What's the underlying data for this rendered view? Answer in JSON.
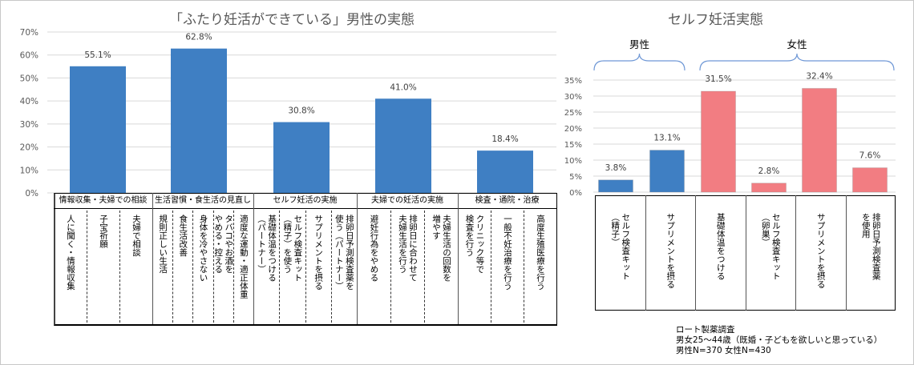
{
  "chart_data": [
    {
      "type": "bar",
      "title": "「ふたり妊活ができている」男性の実態",
      "xlabel": "",
      "ylabel": "",
      "ylim": [
        0,
        70
      ],
      "yticks": [
        "0%",
        "10%",
        "20%",
        "30%",
        "40%",
        "50%",
        "60%",
        "70%"
      ],
      "grid": true,
      "bar_color": "#3f7fc3",
      "categories": [
        "情報収集・夫婦での相談",
        "生活習慣・食生活の見直し",
        "セルフ妊活の実施",
        "夫婦での妊活の実施",
        "検査・通院・治療"
      ],
      "values": [
        55.1,
        62.8,
        30.8,
        41.0,
        18.4
      ],
      "data_labels": [
        "55.1%",
        "62.8%",
        "30.8%",
        "41.0%",
        "18.4%"
      ],
      "category_groups": [
        {
          "header": "情報収集・夫婦での相談",
          "items": [
            "人に聞く・情報収集",
            "子宝祈願",
            "夫婦で相談"
          ]
        },
        {
          "header": "生活習慣・食生活の見直し",
          "items": [
            "規則正しい生活",
            "食生活改善",
            "身体を冷やさない",
            "タバコやお酒を\nやめる・控える",
            "適度な運動・適正体重"
          ]
        },
        {
          "header": "セルフ妊活の実施",
          "items": [
            "基礎体温をつける\n（パートナー）",
            "セルフ検査キット\n（精子）を使う",
            "サプリメントを摂る",
            "排卵日予測検査薬を\n使う（パートナー）"
          ]
        },
        {
          "header": "夫婦での妊活の実施",
          "items": [
            "避妊行為をやめる",
            "排卵日に合わせて\n夫婦生活を行う",
            "夫婦生活の回数を\n増やす"
          ]
        },
        {
          "header": "検査・通院・治療",
          "items": [
            "クリニック等で\n検査を行う",
            "一般不妊治療を行う",
            "高度生殖医療を行う"
          ]
        }
      ]
    },
    {
      "type": "bar",
      "title": "セルフ妊活実態",
      "xlabel": "",
      "ylabel": "",
      "ylim": [
        0,
        35
      ],
      "yticks": [
        "0%",
        "5%",
        "10%",
        "15%",
        "20%",
        "25%",
        "30%",
        "35%"
      ],
      "grid": true,
      "groups": [
        {
          "name": "男性",
          "color": "#3f7fc3"
        },
        {
          "name": "女性",
          "color": "#f27d82"
        }
      ],
      "categories": [
        "セルフ検査キット\n（精子）",
        "サプリメントを摂る",
        "基礎体温をつける",
        "セルフ検査キット\n（卵巣）",
        "サプリメントを摂る",
        "排卵日予測検査薬\nを使用"
      ],
      "category_group": [
        "男性",
        "男性",
        "女性",
        "女性",
        "女性",
        "女性"
      ],
      "values": [
        3.8,
        13.1,
        31.5,
        2.8,
        32.4,
        7.6
      ],
      "data_labels": [
        "3.8%",
        "13.1%",
        "31.5%",
        "2.8%",
        "32.4%",
        "7.6%"
      ]
    }
  ],
  "footnote": {
    "lines": [
      "ロート製薬調査",
      "男女25〜44歳（既婚・子どもを欲しいと思っている）",
      "男性N=370  女性N=430"
    ]
  }
}
